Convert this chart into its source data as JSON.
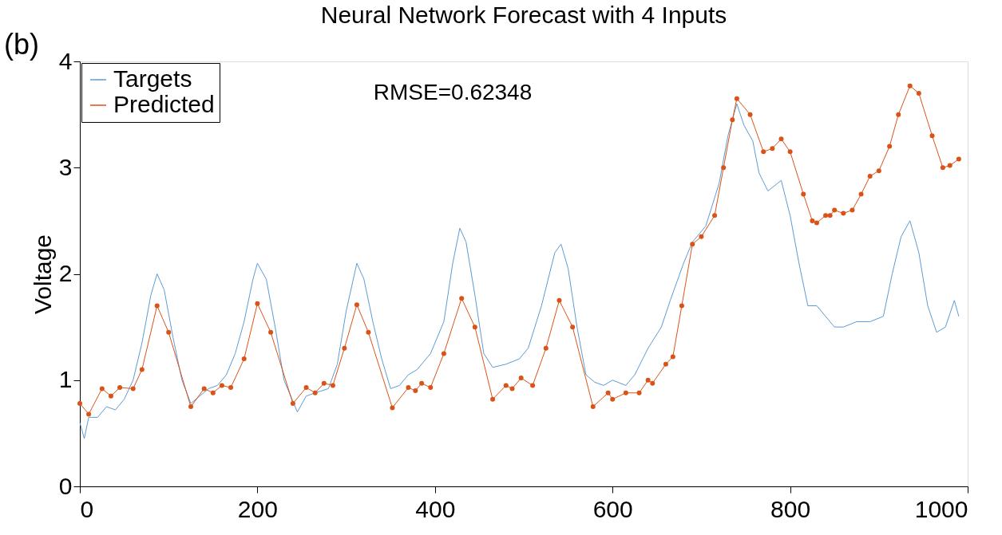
{
  "chart_data": {
    "type": "line",
    "title": "Neural Network Forecast with 4 Inputs",
    "ylabel": "Voltage",
    "annotations": [
      "(b)",
      "RMSE=0.62348"
    ],
    "xlim": [
      0,
      1000
    ],
    "ylim": [
      0,
      4
    ],
    "xticks": [
      0,
      200,
      400,
      600,
      800,
      1000
    ],
    "yticks": [
      0,
      1,
      2,
      3,
      4
    ],
    "grid": false,
    "legend": "top left",
    "series": [
      {
        "name": "Targets",
        "color": "#5b9bd5",
        "marker": "none",
        "x": [
          0,
          5,
          10,
          20,
          30,
          40,
          50,
          60,
          70,
          80,
          87,
          95,
          105,
          115,
          125,
          135,
          145,
          155,
          165,
          175,
          185,
          195,
          200,
          210,
          220,
          230,
          240,
          245,
          255,
          265,
          280,
          290,
          300,
          312,
          320,
          330,
          340,
          350,
          360,
          370,
          380,
          395,
          410,
          420,
          428,
          435,
          445,
          455,
          465,
          480,
          495,
          505,
          520,
          535,
          542,
          550,
          560,
          570,
          580,
          590,
          600,
          615,
          625,
          640,
          655,
          665,
          680,
          690,
          705,
          720,
          730,
          740,
          748,
          758,
          765,
          775,
          790,
          800,
          810,
          820,
          830,
          840,
          850,
          860,
          875,
          890,
          905,
          915,
          925,
          935,
          945,
          955,
          965,
          975,
          985,
          990
        ],
        "values": [
          0.6,
          0.45,
          0.65,
          0.65,
          0.75,
          0.72,
          0.82,
          1.0,
          1.35,
          1.8,
          2.0,
          1.85,
          1.4,
          1.0,
          0.78,
          0.85,
          0.92,
          0.95,
          1.05,
          1.25,
          1.55,
          1.95,
          2.1,
          1.95,
          1.5,
          1.0,
          0.8,
          0.7,
          0.85,
          0.88,
          0.92,
          1.15,
          1.65,
          2.1,
          1.95,
          1.55,
          1.2,
          0.92,
          0.95,
          1.05,
          1.1,
          1.25,
          1.55,
          2.1,
          2.43,
          2.3,
          1.8,
          1.25,
          1.12,
          1.15,
          1.2,
          1.3,
          1.7,
          2.2,
          2.28,
          2.05,
          1.5,
          1.05,
          0.98,
          0.95,
          1.0,
          0.95,
          1.05,
          1.3,
          1.5,
          1.75,
          2.1,
          2.3,
          2.45,
          2.85,
          3.3,
          3.6,
          3.4,
          3.25,
          2.95,
          2.78,
          2.88,
          2.55,
          2.1,
          1.7,
          1.7,
          1.6,
          1.5,
          1.5,
          1.55,
          1.55,
          1.6,
          2.0,
          2.35,
          2.5,
          2.2,
          1.7,
          1.45,
          1.5,
          1.75,
          1.6
        ]
      },
      {
        "name": "Predicted",
        "color": "#d95319",
        "marker": "circle",
        "x": [
          0,
          10,
          25,
          35,
          45,
          60,
          70,
          87,
          100,
          125,
          140,
          150,
          160,
          170,
          185,
          200,
          215,
          240,
          255,
          265,
          275,
          285,
          298,
          312,
          325,
          352,
          370,
          378,
          385,
          395,
          410,
          430,
          445,
          465,
          480,
          487,
          497,
          510,
          525,
          540,
          555,
          578,
          595,
          600,
          615,
          630,
          640,
          645,
          660,
          668,
          678,
          690,
          700,
          715,
          725,
          735,
          740,
          755,
          770,
          780,
          790,
          800,
          815,
          825,
          830,
          840,
          845,
          850,
          860,
          870,
          880,
          890,
          900,
          912,
          922,
          935,
          945,
          960,
          972,
          980,
          990
        ],
        "values": [
          0.78,
          0.68,
          0.92,
          0.85,
          0.93,
          0.92,
          1.1,
          1.7,
          1.45,
          0.75,
          0.92,
          0.88,
          0.95,
          0.93,
          1.2,
          1.72,
          1.45,
          0.78,
          0.93,
          0.88,
          0.97,
          0.95,
          1.3,
          1.71,
          1.45,
          0.74,
          0.93,
          0.9,
          0.97,
          0.93,
          1.25,
          1.77,
          1.5,
          0.82,
          0.95,
          0.92,
          1.02,
          0.95,
          1.3,
          1.75,
          1.5,
          0.75,
          0.88,
          0.82,
          0.88,
          0.88,
          1.0,
          0.97,
          1.15,
          1.22,
          1.7,
          2.28,
          2.35,
          2.55,
          3.0,
          3.45,
          3.65,
          3.5,
          3.15,
          3.18,
          3.27,
          3.15,
          2.75,
          2.5,
          2.48,
          2.55,
          2.55,
          2.6,
          2.57,
          2.6,
          2.75,
          2.92,
          2.97,
          3.2,
          3.5,
          3.77,
          3.7,
          3.3,
          3.0,
          3.02,
          3.08
        ]
      }
    ]
  }
}
